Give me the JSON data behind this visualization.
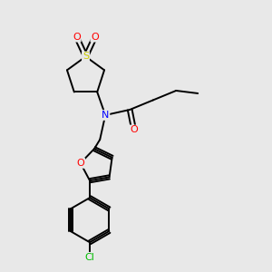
{
  "background_color": "#e8e8e8",
  "atom_colors": {
    "N": "#0000ff",
    "O": "#ff0000",
    "S": "#cccc00",
    "Cl": "#00bb00",
    "C": "#000000"
  },
  "bond_color": "#000000",
  "bond_width": 1.4,
  "fig_w": 3.0,
  "fig_h": 3.0,
  "dpi": 100
}
